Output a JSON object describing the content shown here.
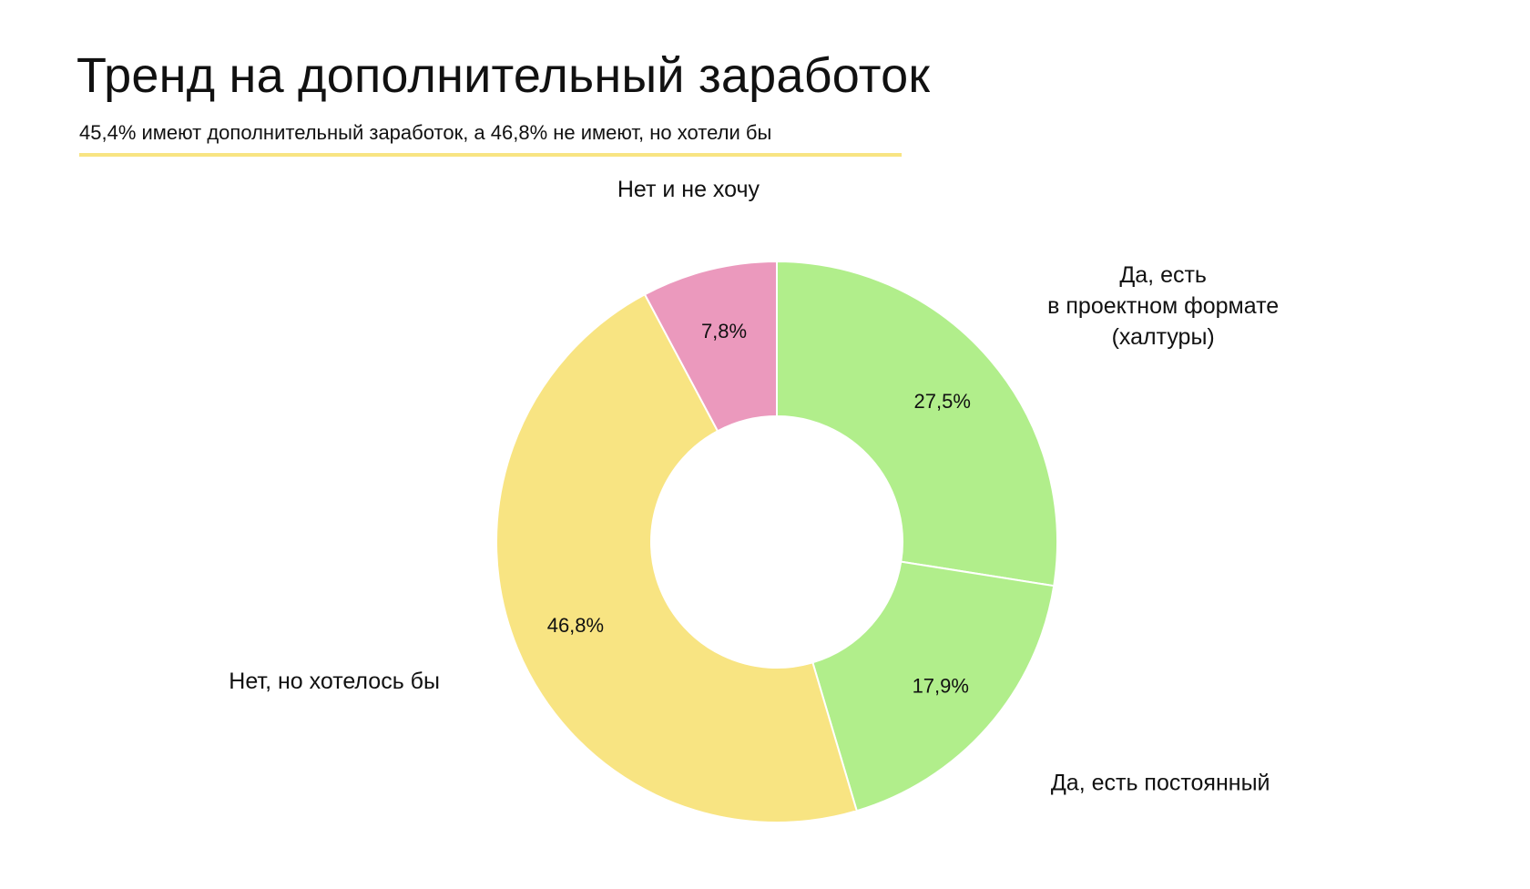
{
  "header": {
    "title": "Тренд на дополнительный заработок",
    "subtitle": "45,4% имеют дополнительный заработок, а 46,8% не имеют, но хотели бы"
  },
  "colors": {
    "underline": "#f8e482",
    "green": "#b1ee8b",
    "yellow": "#f8e482",
    "pink": "#eb99bd",
    "separator": "#ffffff"
  },
  "chart_data": {
    "type": "pie",
    "style": "donut",
    "start_direction": "top",
    "clockwise": true,
    "slices": [
      {
        "name": [
          "Да, есть",
          "в проектном формате",
          "(халтуры)"
        ],
        "value": 27.5,
        "label": "27,5%",
        "color": "#b1ee8b"
      },
      {
        "name": [
          "Да, есть постоянный"
        ],
        "value": 17.9,
        "label": "17,9%",
        "color": "#b1ee8b"
      },
      {
        "name": [
          "Нет, но хотелось бы"
        ],
        "value": 46.8,
        "label": "46,8%",
        "color": "#f8e482"
      },
      {
        "name": [
          "Нет и не хочу"
        ],
        "value": 7.8,
        "label": "7,8%",
        "color": "#eb99bd"
      }
    ]
  }
}
